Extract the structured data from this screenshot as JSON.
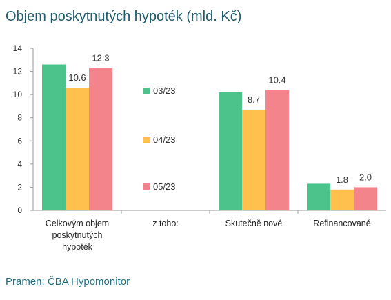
{
  "title": "Objem poskytnutých hypoték (mld. Kč)",
  "source": "Pramen: ČBA Hypomonitor",
  "chart_data": {
    "type": "bar",
    "title": "Objem poskytnutých hypoték (mld. Kč)",
    "xlabel": "",
    "ylabel": "",
    "ylim": [
      0,
      14
    ],
    "yticks": [
      0,
      2,
      4,
      6,
      8,
      10,
      12,
      14
    ],
    "grid": false,
    "legend": "inside-plot-center",
    "categories": [
      [
        "Celkovým objem",
        "poskytnutých",
        "hypoték"
      ],
      [
        "z toho:"
      ],
      [
        "Skutečně nové"
      ],
      [
        "Refinancované"
      ]
    ],
    "series": [
      {
        "name": "03/23",
        "color": "#4cc38a",
        "values": [
          12.6,
          null,
          10.2,
          2.3
        ],
        "labels": [
          "",
          "",
          "",
          ""
        ]
      },
      {
        "name": "04/23",
        "color": "#ffc04d",
        "values": [
          10.6,
          null,
          8.7,
          1.8
        ],
        "labels": [
          "10.6",
          "",
          "8.7",
          "1.8"
        ]
      },
      {
        "name": "05/23",
        "color": "#f4848b",
        "values": [
          12.3,
          null,
          10.4,
          2.0
        ],
        "labels": [
          "12.3",
          "",
          "10.4",
          "2.0"
        ]
      }
    ]
  }
}
